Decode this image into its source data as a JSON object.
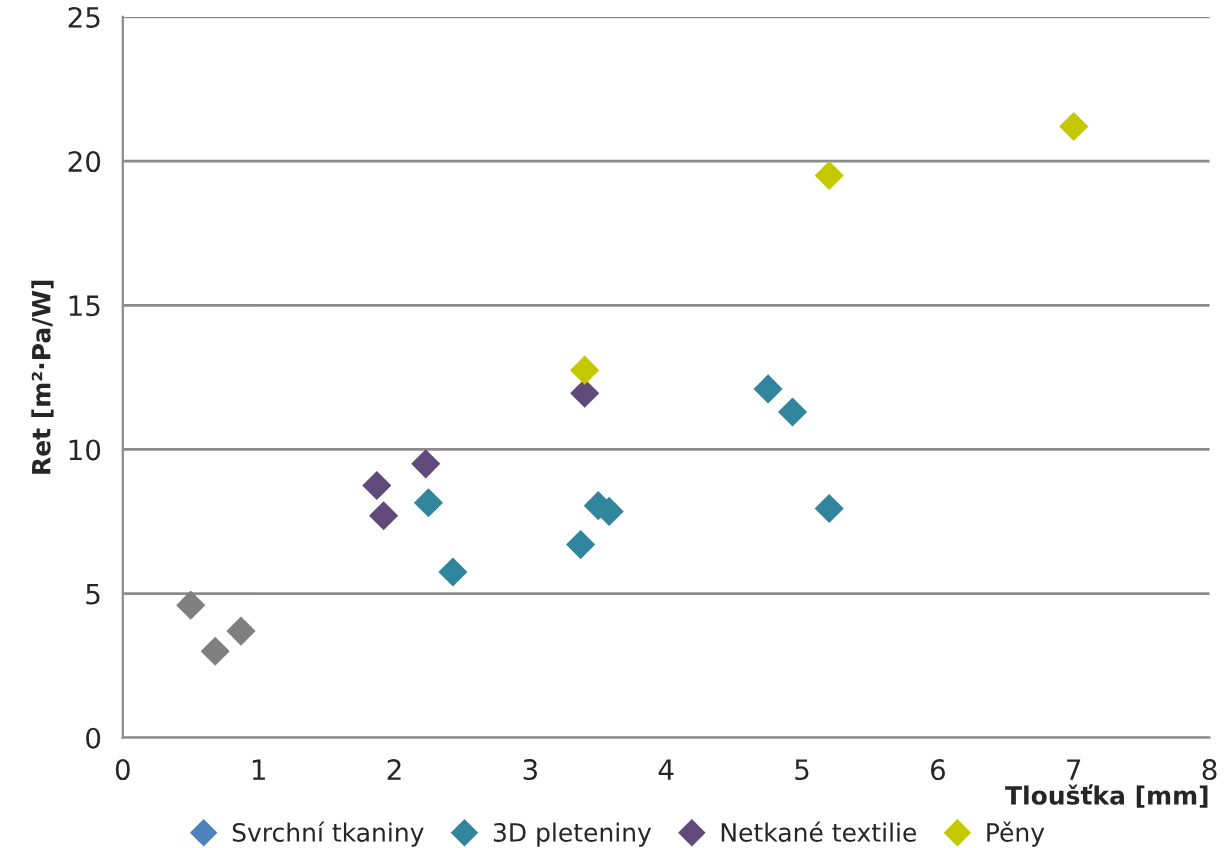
{
  "chart_data": {
    "type": "scatter",
    "xlabel": "Tloušťka [mm]",
    "ylabel": "Ret [m²·Pa/W]",
    "xlim": [
      0,
      8
    ],
    "xticks": [
      0,
      1,
      2,
      3,
      4,
      5,
      6,
      7,
      8
    ],
    "ylim": [
      0,
      25
    ],
    "yticks": [
      0,
      5,
      10,
      15,
      20,
      25
    ],
    "grid": "y",
    "legend": "bottom",
    "marker": "diamond",
    "series": [
      {
        "name": "Svrchní tkaniny",
        "color": "#4f81bd"
      },
      {
        "color": "#7f7f7f",
        "x": [
          0.5,
          0.68,
          0.87
        ],
        "values": [
          4.6,
          3.0,
          3.7
        ]
      },
      {
        "name": "3D pleteniny",
        "color": "#31859c",
        "x": [
          2.25,
          2.43,
          3.37,
          3.5,
          3.58,
          4.75,
          4.93,
          5.2
        ],
        "values": [
          8.15,
          5.75,
          6.7,
          8.05,
          7.85,
          12.1,
          11.3,
          7.95
        ]
      },
      {
        "name": "Netkané textilie",
        "color": "#604a7b",
        "x": [
          1.87,
          1.92,
          2.23,
          3.4
        ],
        "values": [
          8.75,
          7.7,
          9.5,
          11.95
        ]
      },
      {
        "name": "Pěny",
        "color": "#c4c800",
        "x": [
          3.4,
          5.2,
          7.0
        ],
        "values": [
          12.75,
          19.5,
          21.2
        ]
      }
    ]
  }
}
